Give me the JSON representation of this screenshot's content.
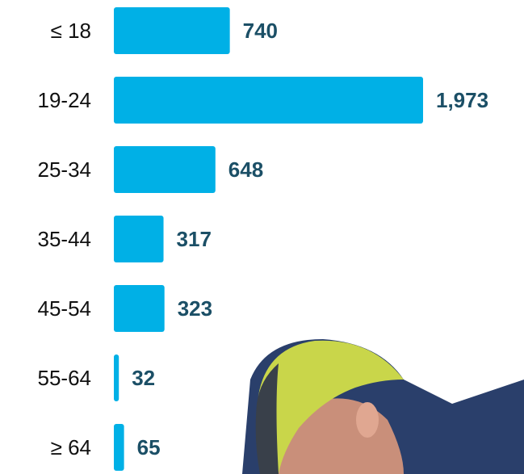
{
  "chart_data": {
    "type": "bar",
    "orientation": "horizontal",
    "categories": [
      "≤ 18",
      "19-24",
      "25-34",
      "35-44",
      "45-54",
      "55-64",
      "≥ 64"
    ],
    "values": [
      740,
      1973,
      648,
      317,
      323,
      32,
      65
    ],
    "value_labels": [
      "740",
      "1,973",
      "648",
      "317",
      "323",
      "32",
      "65"
    ],
    "color": "#00b0e6"
  }
}
